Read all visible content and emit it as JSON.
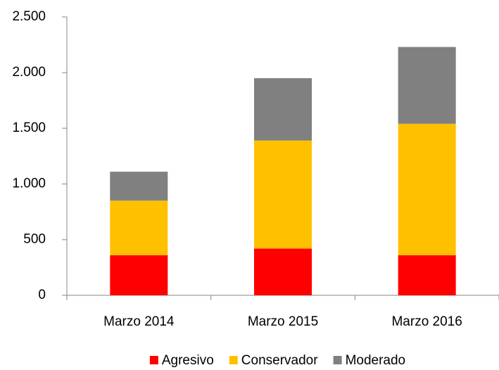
{
  "chart_data": {
    "type": "stacked_bar",
    "categories": [
      "Marzo 2014",
      "Marzo 2015",
      "Marzo 2016"
    ],
    "series": [
      {
        "name": "Agresivo",
        "color": "#ff0000",
        "values": [
          360,
          420,
          360
        ]
      },
      {
        "name": "Conservador",
        "color": "#ffc000",
        "values": [
          490,
          970,
          1180
        ]
      },
      {
        "name": "Moderado",
        "color": "#808080",
        "values": [
          260,
          560,
          690
        ]
      }
    ],
    "ylim": [
      0,
      2500
    ],
    "yticks": [
      0,
      500,
      {
        "value": 1000,
        "label": "1.000"
      },
      {
        "value": 1500,
        "label": "1.500"
      },
      {
        "value": 2000,
        "label": "2.000"
      },
      {
        "value": 2500,
        "label": "2.500"
      }
    ],
    "legend": "bottom"
  }
}
